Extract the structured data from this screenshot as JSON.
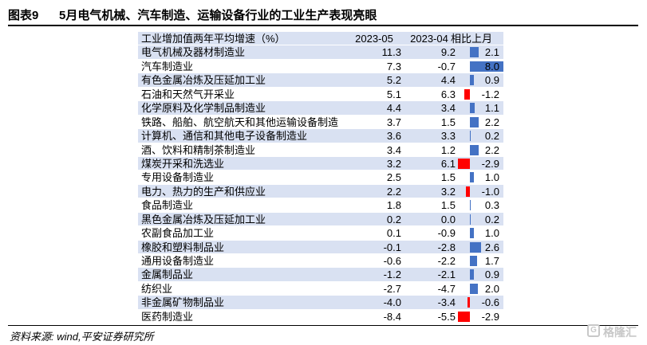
{
  "figure": {
    "number": "图表9",
    "title": "5月电气机械、汽车制造、运输设备行业的工业生产表现亮眼"
  },
  "table": {
    "headers": [
      "工业增加值两年平均增速（%）",
      "2023-05",
      "2023-04",
      "相比上月"
    ],
    "rows": [
      {
        "name": "电气机械及器材制造业",
        "may": "11.3",
        "apr": "9.2",
        "chg": "2.1",
        "chg_value": 2.1
      },
      {
        "name": "汽车制造业",
        "may": "7.3",
        "apr": "-0.7",
        "chg": "8.0",
        "chg_value": 8.0
      },
      {
        "name": "有色金属冶炼及压延加工业",
        "may": "5.2",
        "apr": "4.4",
        "chg": "0.9",
        "chg_value": 0.9
      },
      {
        "name": "石油和天然气开采业",
        "may": "5.1",
        "apr": "6.3",
        "chg": "-1.2",
        "chg_value": -1.2
      },
      {
        "name": "化学原料及化学制品制造业",
        "may": "4.4",
        "apr": "3.4",
        "chg": "1.1",
        "chg_value": 1.1
      },
      {
        "name": "铁路、船舶、航空航天和其他运输设备制造",
        "may": "3.7",
        "apr": "1.5",
        "chg": "2.2",
        "chg_value": 2.2
      },
      {
        "name": "计算机、通信和其他电子设备制造业",
        "may": "3.6",
        "apr": "3.3",
        "chg": "0.2",
        "chg_value": 0.2
      },
      {
        "name": "酒、饮料和精制茶制造业",
        "may": "3.4",
        "apr": "1.2",
        "chg": "2.2",
        "chg_value": 2.2
      },
      {
        "name": "煤炭开采和洗选业",
        "may": "3.2",
        "apr": "6.1",
        "chg": "-2.9",
        "chg_value": -2.9
      },
      {
        "name": "专用设备制造业",
        "may": "2.5",
        "apr": "1.5",
        "chg": "1.0",
        "chg_value": 1.0
      },
      {
        "name": "电力、热力的生产和供应业",
        "may": "2.2",
        "apr": "3.2",
        "chg": "-1.0",
        "chg_value": -1.0
      },
      {
        "name": "食品制造业",
        "may": "1.8",
        "apr": "1.5",
        "chg": "0.3",
        "chg_value": 0.3
      },
      {
        "name": "黑色金属冶炼及压延加工业",
        "may": "0.2",
        "apr": "0.0",
        "chg": "0.2",
        "chg_value": 0.2
      },
      {
        "name": "农副食品加工业",
        "may": "0.1",
        "apr": "-0.9",
        "chg": "1.0",
        "chg_value": 1.0
      },
      {
        "name": "橡胶和塑料制品业",
        "may": "-0.1",
        "apr": "-2.8",
        "chg": "2.6",
        "chg_value": 2.6
      },
      {
        "name": "通用设备制造业",
        "may": "-0.6",
        "apr": "-2.2",
        "chg": "1.7",
        "chg_value": 1.7
      },
      {
        "name": "金属制品业",
        "may": "-1.2",
        "apr": "-2.1",
        "chg": "0.9",
        "chg_value": 0.9
      },
      {
        "name": "纺织业",
        "may": "-2.7",
        "apr": "-4.7",
        "chg": "2.0",
        "chg_value": 2.0
      },
      {
        "name": "非金属矿物制品业",
        "may": "-4.0",
        "apr": "-3.4",
        "chg": "-0.6",
        "chg_value": -0.6
      },
      {
        "name": "医药制造业",
        "may": "-8.4",
        "apr": "-5.5",
        "chg": "-2.9",
        "chg_value": -2.9
      }
    ],
    "bar_range": [
      -3.0,
      8.0
    ],
    "colors": {
      "positive": "#4472c4",
      "negative": "#ff0000",
      "band": "#d9e1f2"
    }
  },
  "source": "资料来源: wind,平安证券研究所",
  "watermark": {
    "text": "格隆汇",
    "icon": "glh-logo-icon"
  }
}
